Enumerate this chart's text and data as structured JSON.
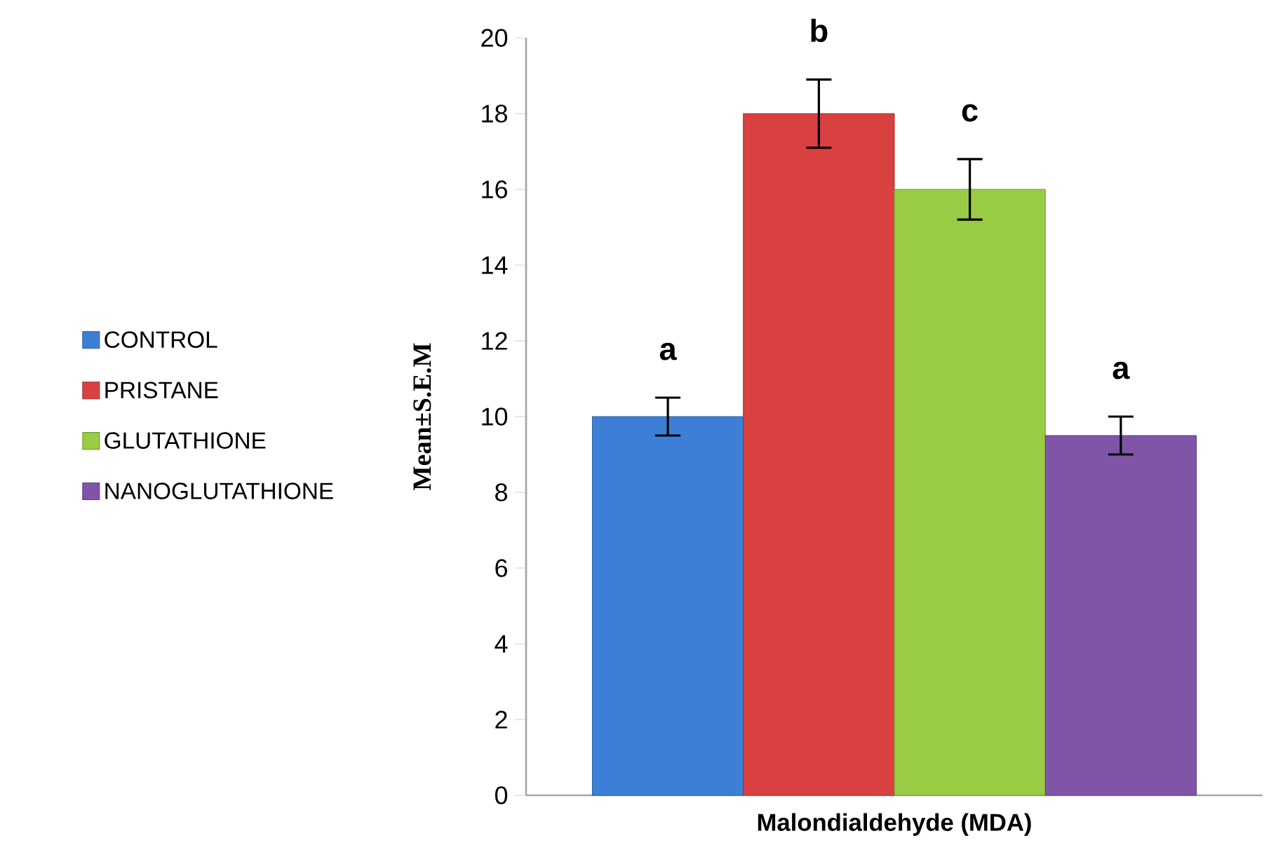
{
  "chart_data": {
    "type": "bar",
    "ylabel": "Mean±S.E.M",
    "categories": [
      "Malondialdehyde (MDA)"
    ],
    "ylim": [
      0,
      20
    ],
    "yticks": [
      0,
      2,
      4,
      6,
      8,
      10,
      12,
      14,
      16,
      18,
      20
    ],
    "legend": "left",
    "series": [
      {
        "name": "CONTROL",
        "color": "#3d7fd6",
        "values": [
          10
        ],
        "errors": [
          0.5
        ],
        "value_labels": [
          "a"
        ]
      },
      {
        "name": "PRISTANE",
        "color": "#d94040",
        "values": [
          18
        ],
        "errors": [
          0.9
        ],
        "value_labels": [
          "b"
        ]
      },
      {
        "name": "GLUTATHIONE",
        "color": "#9acb44",
        "values": [
          16
        ],
        "errors": [
          0.8
        ],
        "value_labels": [
          "c"
        ]
      },
      {
        "name": "NANOGLUTATHIONE",
        "color": "#8055a8",
        "values": [
          9.5
        ],
        "errors": [
          0.5
        ],
        "value_labels": [
          "a"
        ]
      }
    ]
  }
}
